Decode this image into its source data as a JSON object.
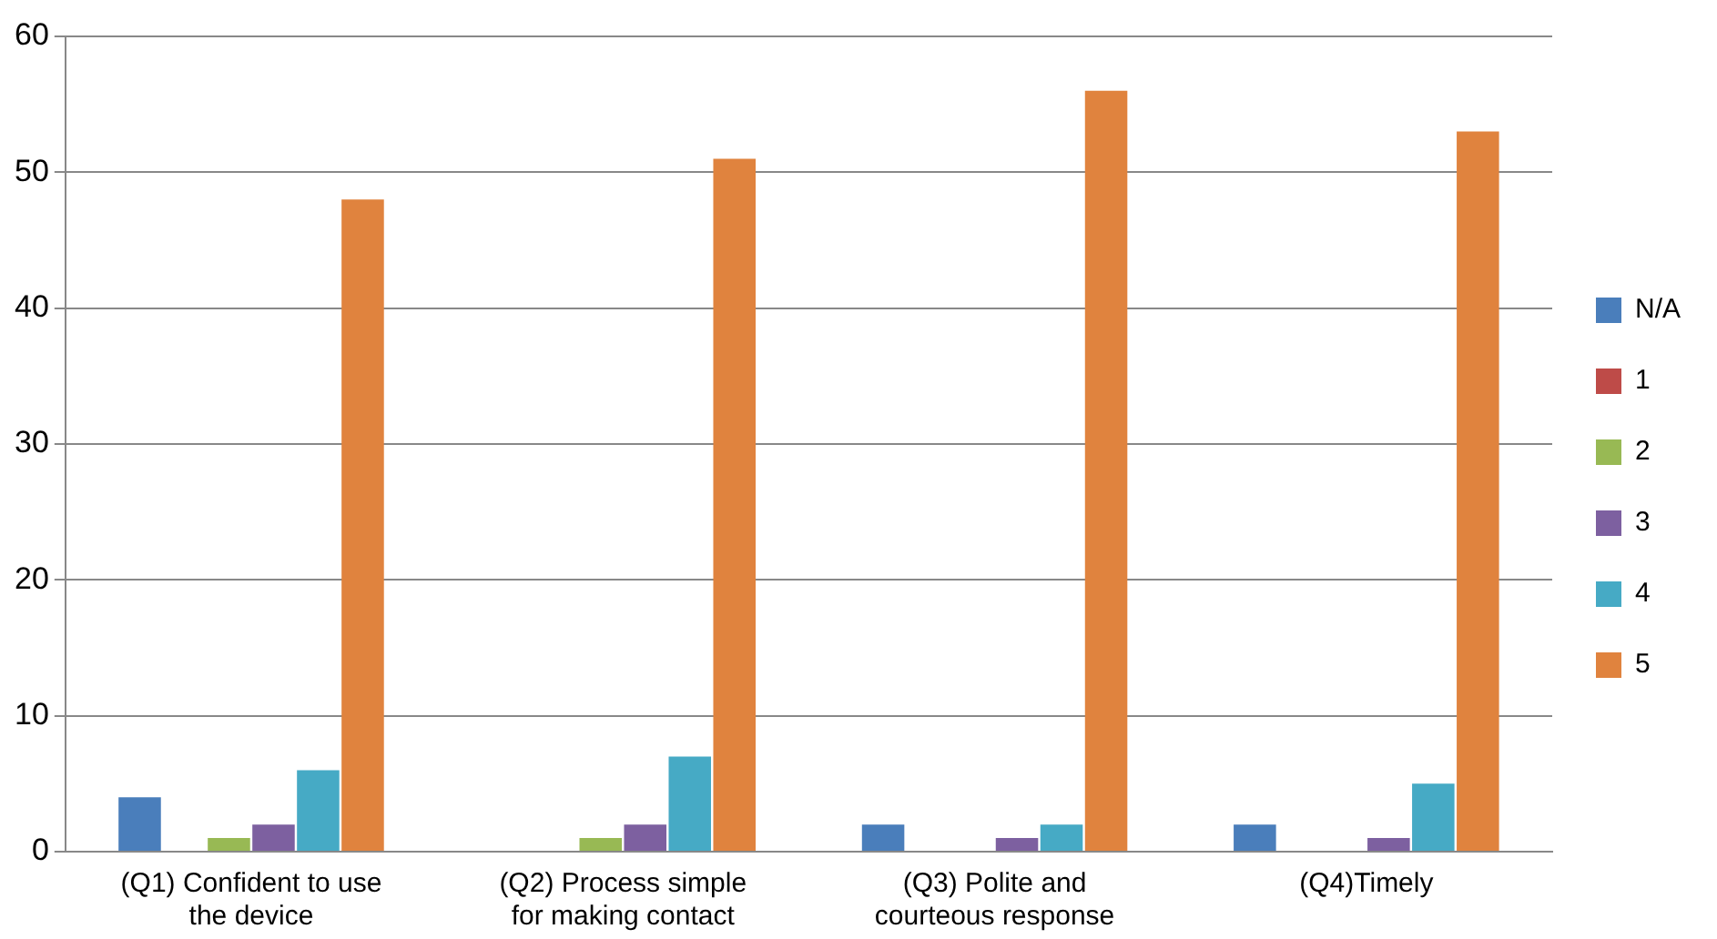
{
  "chart_data": {
    "type": "bar",
    "categories": [
      "(Q1) Confident to use the device",
      "(Q2) Process simple for making contact",
      "(Q3) Polite and courteous response",
      "(Q4)Timely"
    ],
    "series": [
      {
        "name": "N/A",
        "color": "#4a7ebb",
        "values": [
          4,
          0,
          2,
          2
        ]
      },
      {
        "name": "1",
        "color": "#be4b48",
        "values": [
          0,
          0,
          0,
          0
        ]
      },
      {
        "name": "2",
        "color": "#98b954",
        "values": [
          1,
          1,
          0,
          0
        ]
      },
      {
        "name": "3",
        "color": "#7d60a0",
        "values": [
          2,
          2,
          1,
          1
        ]
      },
      {
        "name": "4",
        "color": "#46aac5",
        "values": [
          6,
          7,
          2,
          5
        ]
      },
      {
        "name": "5",
        "color": "#e0833e",
        "values": [
          48,
          51,
          56,
          53
        ]
      }
    ],
    "ylim": [
      0,
      60
    ],
    "yticks": [
      0,
      10,
      20,
      30,
      40,
      50,
      60
    ],
    "grid": "y",
    "legend": "right"
  }
}
